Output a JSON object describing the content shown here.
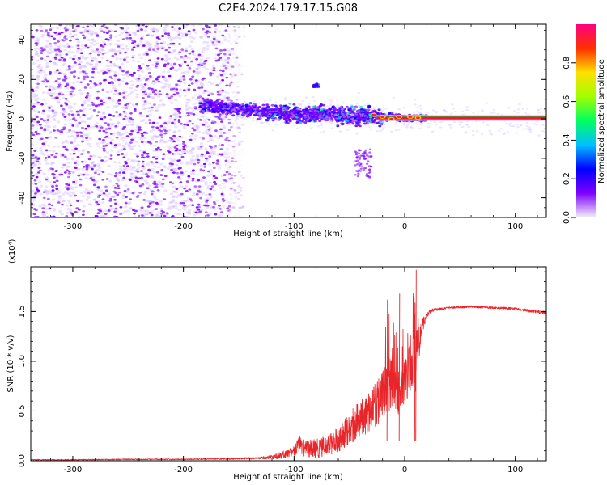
{
  "title": "C2E4.2024.179.17.15.G08",
  "chart_data": [
    {
      "type": "heatmap",
      "xlabel": "Height of straight line (km)",
      "ylabel": "Frequency (Hz)",
      "xlim": [
        -338,
        128
      ],
      "ylim": [
        -50,
        48
      ],
      "xticks": [
        -300,
        -200,
        -100,
        0,
        100
      ],
      "xtick_labels": [
        "-300",
        "-200",
        "-100",
        "0",
        "100"
      ],
      "yticks": [
        -40,
        -20,
        0,
        20,
        40
      ],
      "ytick_labels": [
        "-40",
        "-20",
        "0",
        "20",
        "40"
      ],
      "colorbar": {
        "label": "Normalized spectral amplitude",
        "range": [
          0,
          1
        ],
        "ticks": [
          0.0,
          0.2,
          0.4,
          0.6,
          0.8
        ],
        "tick_labels": [
          "0.0",
          "0.2",
          "0.4",
          "0.6",
          "0.8"
        ],
        "colors": [
          "#f2f2f2",
          "#7f00ff",
          "#0000ff",
          "#00bfff",
          "#00ff60",
          "#a0ff00",
          "#ffe000",
          "#ff3000",
          "#ff0080"
        ]
      },
      "features": [
        {
          "name": "noise-region",
          "x_range": [
            -338,
            -145
          ],
          "y_range": [
            -50,
            48
          ]
        },
        {
          "name": "signal-band",
          "x_range": [
            -185,
            128
          ],
          "center_frequency": [
            [
              -185,
              7
            ],
            [
              -120,
              3
            ],
            [
              -60,
              2
            ],
            [
              -20,
              1
            ],
            [
              0,
              0.5
            ],
            [
              128,
              0
            ]
          ]
        },
        {
          "name": "blob",
          "x": -80,
          "y": 17
        },
        {
          "name": "tail",
          "x_range": [
            -45,
            -30
          ],
          "y_range": [
            -30,
            -15
          ]
        }
      ],
      "grid": false
    },
    {
      "type": "line",
      "xlabel": "Height of straight line (km)",
      "ylabel": "SNR (10 * v/v)",
      "multiplier": "(x10⁴)",
      "xlim": [
        -338,
        128
      ],
      "ylim": [
        0,
        1.95
      ],
      "xticks": [
        -300,
        -200,
        -100,
        0,
        100
      ],
      "xtick_labels": [
        "-300",
        "-200",
        "-100",
        "0",
        "100"
      ],
      "yticks": [
        0.0,
        0.5,
        1.0,
        1.5
      ],
      "ytick_labels": [
        "0.0",
        "0.5",
        "1.0",
        "1.5"
      ],
      "series": [
        {
          "color": "#e8262a",
          "envelope": [
            [
              -338,
              0.015,
              0.01
            ],
            [
              -300,
              0.015,
              0.01
            ],
            [
              -250,
              0.02,
              0.01
            ],
            [
              -200,
              0.02,
              0.01
            ],
            [
              -150,
              0.03,
              0.015
            ],
            [
              -130,
              0.04,
              0.02
            ],
            [
              -120,
              0.06,
              0.04
            ],
            [
              -110,
              0.1,
              0.07
            ],
            [
              -100,
              0.15,
              0.1
            ],
            [
              -95,
              0.25,
              0.15
            ],
            [
              -90,
              0.2,
              0.15
            ],
            [
              -80,
              0.22,
              0.18
            ],
            [
              -70,
              0.25,
              0.18
            ],
            [
              -60,
              0.35,
              0.25
            ],
            [
              -50,
              0.5,
              0.3
            ],
            [
              -40,
              0.6,
              0.35
            ],
            [
              -30,
              0.75,
              0.4
            ],
            [
              -20,
              0.9,
              0.45
            ],
            [
              -15,
              1.05,
              0.5
            ],
            [
              -10,
              1.0,
              0.45
            ],
            [
              -5,
              0.9,
              0.4
            ],
            [
              0,
              1.0,
              0.4
            ],
            [
              5,
              1.2,
              0.5
            ],
            [
              10,
              1.3,
              0.55
            ],
            [
              15,
              1.4,
              0.15
            ],
            [
              20,
              1.5,
              0.05
            ],
            [
              25,
              1.53,
              0.03
            ],
            [
              40,
              1.55,
              0.02
            ],
            [
              60,
              1.56,
              0.02
            ],
            [
              80,
              1.55,
              0.02
            ],
            [
              100,
              1.54,
              0.02
            ],
            [
              115,
              1.52,
              0.03
            ],
            [
              128,
              1.5,
              0.03
            ]
          ],
          "peaks": [
            [
              -16,
              1.62
            ],
            [
              -5,
              1.68
            ],
            [
              10,
              1.92
            ],
            [
              9,
              1.25
            ]
          ]
        }
      ],
      "grid": false
    }
  ]
}
